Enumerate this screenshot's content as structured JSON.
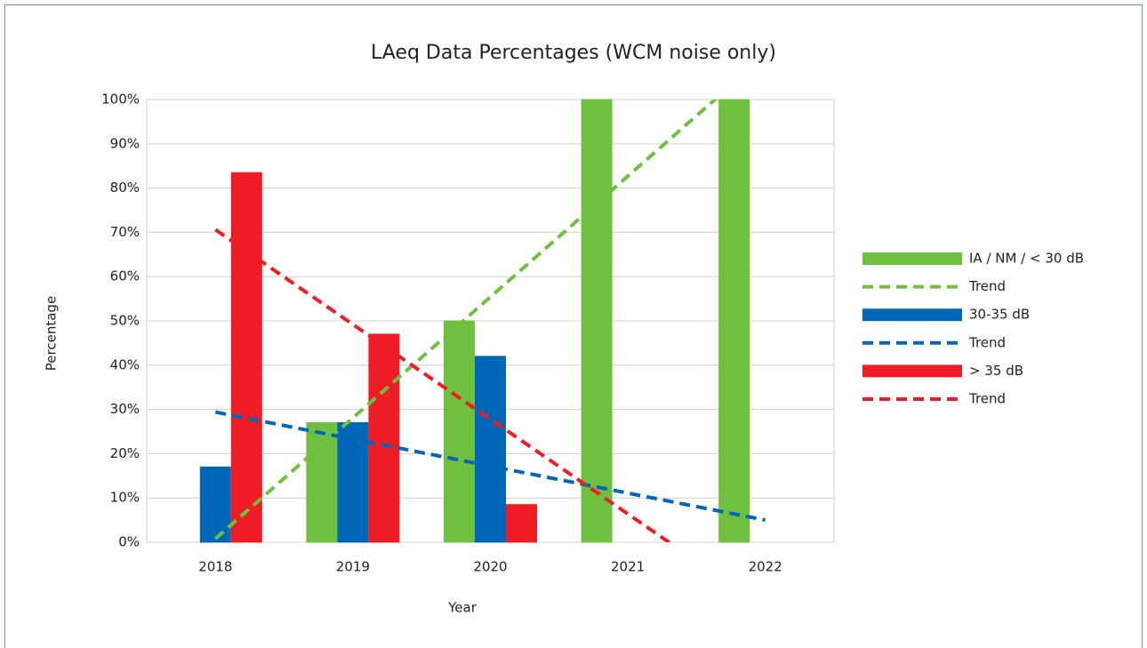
{
  "chart_data": {
    "type": "bar",
    "title": "LAeq Data Percentages (WCM noise only)",
    "x_label": "Year",
    "y_label": "Percentage",
    "categories": [
      "2018",
      "2019",
      "2020",
      "2021",
      "2022"
    ],
    "series": [
      {
        "name": "IA / NM / < 30 dB",
        "type": "bar",
        "color": "#70c040",
        "values": [
          0,
          27,
          50,
          100,
          100
        ]
      },
      {
        "name": "Trend",
        "type": "trend",
        "color": "#70c040",
        "values": [
          0.8,
          28.1,
          55.4,
          82.7,
          110
        ]
      },
      {
        "name": "30-35 dB",
        "type": "bar",
        "color": "#0066b8",
        "values": [
          17,
          27,
          42,
          0,
          0
        ]
      },
      {
        "name": "Trend",
        "type": "trend",
        "color": "#0066b8",
        "values": [
          29.4,
          23.3,
          17.2,
          11.1,
          5.0
        ]
      },
      {
        "name": "> 35 dB",
        "type": "bar",
        "color": "#ee1c25",
        "values": [
          83.5,
          47,
          8.5,
          0,
          0
        ]
      },
      {
        "name": "Trend",
        "type": "trend",
        "color": "#ee1c25",
        "values": [
          70.6,
          49.2,
          27.8,
          6.4,
          -15
        ]
      }
    ],
    "ylim": [
      0,
      100
    ],
    "yticks": [
      {
        "value": 0,
        "label": "0%"
      },
      {
        "value": 10,
        "label": "10%"
      },
      {
        "value": 20,
        "label": "20%"
      },
      {
        "value": 30,
        "label": "30%"
      },
      {
        "value": 40,
        "label": "40%"
      },
      {
        "value": 50,
        "label": "50%"
      },
      {
        "value": 60,
        "label": "60%"
      },
      {
        "value": 70,
        "label": "70%"
      },
      {
        "value": 80,
        "label": "80%"
      },
      {
        "value": 90,
        "label": "90%"
      },
      {
        "value": 100,
        "label": "100%"
      }
    ],
    "grid": true,
    "legend": "right"
  }
}
